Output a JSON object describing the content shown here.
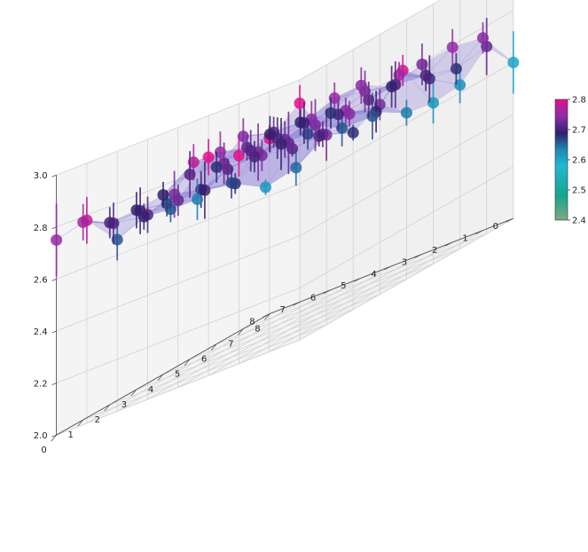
{
  "chart_data": {
    "type": "scatter3d",
    "title": "",
    "xlabel": "",
    "ylabel": "",
    "zlabel": "",
    "xlim": [
      0,
      8
    ],
    "ylim": [
      0,
      8
    ],
    "zlim": [
      2.0,
      3.0
    ],
    "x_ticks": [
      "0",
      "1",
      "2",
      "3",
      "4",
      "5",
      "6",
      "7",
      "8"
    ],
    "y_ticks": [
      "0",
      "1",
      "2",
      "3",
      "4",
      "5",
      "6",
      "7",
      "8"
    ],
    "z_ticks": [
      "2.0",
      "2.2",
      "2.4",
      "2.6",
      "2.8",
      "3.0"
    ],
    "grid": true,
    "surface": {
      "style": "translucent mesh through the points",
      "color": "#8f84d8"
    },
    "error_bars": true,
    "colorbar": {
      "ticks": [
        "2.4",
        "2.5",
        "2.6",
        "2.7",
        "2.8"
      ],
      "range": [
        2.4,
        2.8
      ],
      "stops": [
        "#7fa882",
        "#16a58a",
        "#22b7d2",
        "#1c8bb7",
        "#30206b",
        "#8e2da8",
        "#e0108a"
      ]
    },
    "points": [
      {
        "x": 0,
        "y": 0,
        "z": 2.91,
        "err": 0.07
      },
      {
        "x": 1,
        "y": 0,
        "z": 2.82,
        "err": 0.05
      },
      {
        "x": 2,
        "y": 0,
        "z": 2.8,
        "err": 0.08
      },
      {
        "x": 3,
        "y": 0,
        "z": 2.84,
        "err": 0.07
      },
      {
        "x": 4,
        "y": 0,
        "z": 2.72,
        "err": 0.06
      },
      {
        "x": 5,
        "y": 0,
        "z": 2.71,
        "err": 0.07
      },
      {
        "x": 6,
        "y": 0,
        "z": 2.66,
        "err": 0.08
      },
      {
        "x": 7,
        "y": 0,
        "z": 2.78,
        "err": 0.09
      },
      {
        "x": 8,
        "y": 0,
        "z": 2.75,
        "err": 0.14
      },
      {
        "x": 0,
        "y": 1,
        "z": 2.73,
        "err": 0.1
      },
      {
        "x": 1,
        "y": 1,
        "z": 2.65,
        "err": 0.07
      },
      {
        "x": 2,
        "y": 1,
        "z": 2.62,
        "err": 0.03
      },
      {
        "x": 3,
        "y": 1,
        "z": 2.68,
        "err": 0.04
      },
      {
        "x": 4,
        "y": 1,
        "z": 2.7,
        "err": 0.11
      },
      {
        "x": 5,
        "y": 1,
        "z": 2.73,
        "err": 0.09
      },
      {
        "x": 6,
        "y": 1,
        "z": 2.69,
        "err": 0.05
      },
      {
        "x": 7,
        "y": 1,
        "z": 2.71,
        "err": 0.08
      },
      {
        "x": 8,
        "y": 1,
        "z": 2.76,
        "err": 0.07
      },
      {
        "x": 0,
        "y": 2,
        "z": 2.68,
        "err": 0.03
      },
      {
        "x": 1,
        "y": 2,
        "z": 2.72,
        "err": 0.05
      },
      {
        "x": 2,
        "y": 2,
        "z": 2.71,
        "err": 0.03
      },
      {
        "x": 3,
        "y": 2,
        "z": 2.73,
        "err": 0.06
      },
      {
        "x": 4,
        "y": 2,
        "z": 2.67,
        "err": 0.06
      },
      {
        "x": 5,
        "y": 2,
        "z": 2.69,
        "err": 0.07
      },
      {
        "x": 6,
        "y": 2,
        "z": 2.66,
        "err": 0.05
      },
      {
        "x": 7,
        "y": 2,
        "z": 2.7,
        "err": 0.09
      },
      {
        "x": 8,
        "y": 2,
        "z": 2.7,
        "err": 0.06
      },
      {
        "x": 0,
        "y": 3,
        "z": 2.73,
        "err": 0.06
      },
      {
        "x": 1,
        "y": 3,
        "z": 2.74,
        "err": 0.05
      },
      {
        "x": 2,
        "y": 3,
        "z": 2.7,
        "err": 0.04
      },
      {
        "x": 3,
        "y": 3,
        "z": 2.72,
        "err": 0.12
      },
      {
        "x": 4,
        "y": 3,
        "z": 2.73,
        "err": 0.11
      },
      {
        "x": 5,
        "y": 3,
        "z": 2.71,
        "err": 0.04
      },
      {
        "x": 6,
        "y": 3,
        "z": 2.64,
        "err": 0.08
      },
      {
        "x": 7,
        "y": 3,
        "z": 2.67,
        "err": 0.05
      },
      {
        "x": 8,
        "y": 3,
        "z": 2.69,
        "err": 0.07
      },
      {
        "x": 0,
        "y": 4,
        "z": 2.64,
        "err": 0.05
      },
      {
        "x": 1,
        "y": 4,
        "z": 2.69,
        "err": 0.08
      },
      {
        "x": 2,
        "y": 4,
        "z": 2.74,
        "err": 0.05
      },
      {
        "x": 3,
        "y": 4,
        "z": 2.73,
        "err": 0.1
      },
      {
        "x": 4,
        "y": 4,
        "z": 2.72,
        "err": 0.07
      },
      {
        "x": 5,
        "y": 4,
        "z": 2.7,
        "err": 0.06
      },
      {
        "x": 6,
        "y": 4,
        "z": 2.72,
        "err": 0.08
      },
      {
        "x": 7,
        "y": 4,
        "z": 2.77,
        "err": 0.07
      },
      {
        "x": 8,
        "y": 4,
        "z": 2.69,
        "err": 0.05
      },
      {
        "x": 0,
        "y": 5,
        "z": 2.62,
        "err": 0.08
      },
      {
        "x": 1,
        "y": 5,
        "z": 2.79,
        "err": 0.06
      },
      {
        "x": 2,
        "y": 5,
        "z": 2.66,
        "err": 0.09
      },
      {
        "x": 3,
        "y": 5,
        "z": 2.66,
        "err": 0.07
      },
      {
        "x": 4,
        "y": 5,
        "z": 2.74,
        "err": 0.07
      },
      {
        "x": 5,
        "y": 5,
        "z": 2.69,
        "err": 0.1
      },
      {
        "x": 6,
        "y": 5,
        "z": 2.71,
        "err": 0.08
      },
      {
        "x": 7,
        "y": 5,
        "z": 2.75,
        "err": 0.08
      },
      {
        "x": 8,
        "y": 5,
        "z": 2.71,
        "err": 0.09
      },
      {
        "x": 0,
        "y": 6,
        "z": 2.63,
        "err": 0.07
      },
      {
        "x": 1,
        "y": 6,
        "z": 2.7,
        "err": 0.09
      },
      {
        "x": 2,
        "y": 6,
        "z": 2.76,
        "err": 0.05
      },
      {
        "x": 3,
        "y": 6,
        "z": 2.71,
        "err": 0.07
      },
      {
        "x": 4,
        "y": 6,
        "z": 2.7,
        "err": 0.06
      },
      {
        "x": 5,
        "y": 6,
        "z": 2.67,
        "err": 0.06
      },
      {
        "x": 6,
        "y": 6,
        "z": 2.7,
        "err": 0.08
      },
      {
        "x": 7,
        "y": 6,
        "z": 2.71,
        "err": 0.05
      },
      {
        "x": 8,
        "y": 6,
        "z": 2.68,
        "err": 0.06
      },
      {
        "x": 0,
        "y": 7,
        "z": 2.72,
        "err": 0.11
      },
      {
        "x": 1,
        "y": 7,
        "z": 2.68,
        "err": 0.06
      },
      {
        "x": 2,
        "y": 7,
        "z": 2.7,
        "err": 0.06
      },
      {
        "x": 3,
        "y": 7,
        "z": 2.71,
        "err": 0.09
      },
      {
        "x": 4,
        "y": 7,
        "z": 2.73,
        "err": 0.08
      },
      {
        "x": 5,
        "y": 7,
        "z": 2.75,
        "err": 0.06
      },
      {
        "x": 6,
        "y": 7,
        "z": 2.7,
        "err": 0.08
      },
      {
        "x": 7,
        "y": 7,
        "z": 2.71,
        "err": 0.06
      },
      {
        "x": 8,
        "y": 7,
        "z": 2.74,
        "err": 0.07
      },
      {
        "x": 0,
        "y": 8,
        "z": 2.6,
        "err": 0.12
      },
      {
        "x": 1,
        "y": 8,
        "z": 2.74,
        "err": 0.06
      },
      {
        "x": 2,
        "y": 8,
        "z": 2.75,
        "err": 0.07
      },
      {
        "x": 3,
        "y": 8,
        "z": 2.73,
        "err": 0.08
      },
      {
        "x": 4,
        "y": 8,
        "z": 2.69,
        "err": 0.08
      },
      {
        "x": 5,
        "y": 8,
        "z": 2.74,
        "err": 0.07
      },
      {
        "x": 6,
        "y": 8,
        "z": 2.68,
        "err": 0.06
      },
      {
        "x": 7,
        "y": 8,
        "z": 2.69,
        "err": 0.05
      },
      {
        "x": 8,
        "y": 8,
        "z": 2.69,
        "err": 0.07
      }
    ]
  }
}
